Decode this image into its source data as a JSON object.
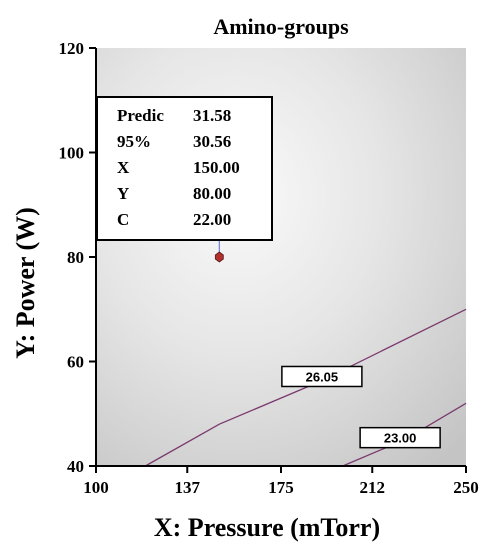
{
  "chart_data": {
    "type": "contour",
    "title": "Amino-groups",
    "xlabel": "X: Pressure (mTorr)",
    "ylabel": "Y: Power (W)",
    "xlim": [
      100,
      250
    ],
    "ylim": [
      40,
      120
    ],
    "x_ticks": [
      "100",
      "137",
      "175",
      "212",
      "250"
    ],
    "y_ticks": [
      "40",
      "60",
      "80",
      "100",
      "120"
    ],
    "contours": [
      {
        "level": "26.05",
        "points": [
          [
            120,
            40
          ],
          [
            150,
            48
          ],
          [
            190,
            56
          ],
          [
            250,
            70
          ]
        ]
      },
      {
        "level": "23.00",
        "points": [
          [
            200,
            40
          ],
          [
            225,
            45
          ],
          [
            250,
            52
          ]
        ]
      }
    ],
    "design_point": {
      "x": 150,
      "y": 80
    },
    "info_box": {
      "rows": [
        {
          "label": "Predic",
          "value": "31.58"
        },
        {
          "label": "95%",
          "value": "30.56"
        },
        {
          "label": "X",
          "value": "150.00"
        },
        {
          "label": "Y",
          "value": "80.00"
        },
        {
          "label": "C",
          "value": "22.00"
        }
      ]
    },
    "grid": false,
    "colors": {
      "contour_line": "#7a3a6e",
      "point": "#b03030",
      "pointer": "#6f7fd6"
    }
  }
}
